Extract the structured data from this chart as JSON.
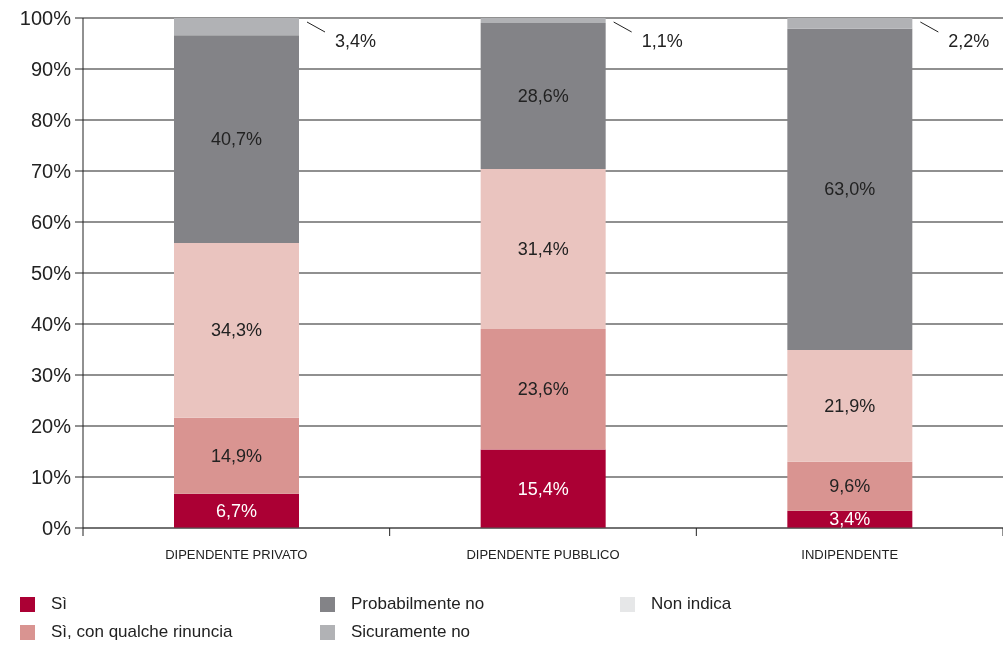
{
  "chart_data": {
    "type": "bar",
    "stacked": true,
    "categories": [
      "DIPENDENTE PRIVATO",
      "DIPENDENTE PUBBLICO",
      "INDIPENDENTE"
    ],
    "series": [
      {
        "name": "Sì",
        "color": "#ab0034",
        "values": [
          6.7,
          15.4,
          3.4
        ],
        "value_labels": [
          "6,7%",
          "15,4%",
          "3,4%"
        ]
      },
      {
        "name": "Sì, con qualche rinuncia",
        "color": "#d99491",
        "values": [
          14.9,
          23.6,
          9.6
        ],
        "value_labels": [
          "14,9%",
          "23,6%",
          "9,6%"
        ]
      },
      {
        "color": "#eac4bf",
        "values": [
          34.3,
          31.4,
          21.9
        ],
        "value_labels": [
          "34,3%",
          "31,4%",
          "21,9%"
        ]
      },
      {
        "name": "Probabilmente no",
        "color": "#838387",
        "values": [
          40.7,
          28.6,
          63.0
        ],
        "value_labels": [
          "40,7%",
          "28,6%",
          "63,0%"
        ]
      },
      {
        "name": "Sicuramente no",
        "color": "#b1b2b5",
        "values": [
          3.4,
          1.1,
          2.2
        ],
        "value_labels": [
          "3,4%",
          "1,1%",
          "2,2%"
        ]
      },
      {
        "name": "Non indica",
        "color": "#e6e7e8",
        "values": [
          null,
          null,
          null
        ]
      }
    ],
    "ylim": [
      0,
      100
    ],
    "yticks": [
      {
        "value": 0,
        "label": "0%"
      },
      {
        "value": 10,
        "label": "10%"
      },
      {
        "value": 20,
        "label": "20%"
      },
      {
        "value": 30,
        "label": "30%"
      },
      {
        "value": 40,
        "label": "40%"
      },
      {
        "value": 50,
        "label": "50%"
      },
      {
        "value": 60,
        "label": "60%"
      },
      {
        "value": 70,
        "label": "70%"
      },
      {
        "value": 80,
        "label": "80%"
      },
      {
        "value": 90,
        "label": "90%"
      },
      {
        "value": 100,
        "label": "100%"
      }
    ],
    "grid": "y",
    "legend": "bottom"
  }
}
